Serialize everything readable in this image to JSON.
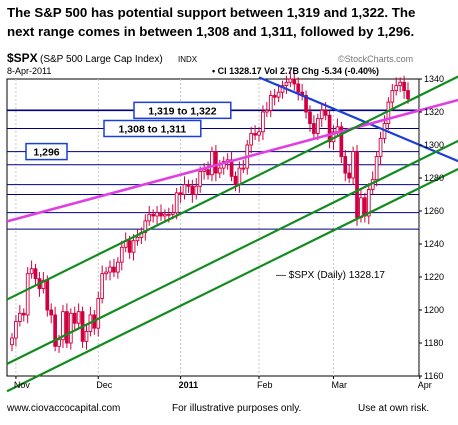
{
  "headline": {
    "line1": "The S&P 500 has potential support between 1,319 and 1,322.  The",
    "line2": "next range  comes in between 1,308 and 1,311, followed by 1,296."
  },
  "header": {
    "symbol": "$SPX",
    "name": "(S&P 500 Large Cap Index)",
    "exchange": "INDX",
    "date": "8-Apr-2011",
    "stats": "• Cl 1328.17  Vol 2.7B  Chg -5.34 (-0.40%)",
    "brand": "©StockCharts.com",
    "legend": "— $SPX (Daily) 1328.17"
  },
  "footer": {
    "site": "www.ciovaccocapital.com",
    "note": "For illustrative purposes only.",
    "risk": "Use at own risk."
  },
  "colors": {
    "candle": "#d00040",
    "grid": "#000080",
    "trend_blue": "#1a3fd6",
    "trend_green": "#128c1e",
    "trend_magenta": "#e040e0",
    "label_box": "#1a3fd6"
  },
  "chart_data": {
    "type": "candlestick",
    "title": "$SPX (S&P 500 Large Cap Index)",
    "ylim": [
      1160,
      1340
    ],
    "yticks": [
      1160,
      1180,
      1200,
      1220,
      1240,
      1260,
      1280,
      1300,
      1320,
      1340
    ],
    "x_labels": [
      "Nov",
      "Dec",
      "2011",
      "Feb",
      "Mar",
      "Apr"
    ],
    "support_levels": [
      {
        "label": "1,319 to 1,322",
        "value": 1321
      },
      {
        "label": "1,308 to 1,311",
        "value": 1310
      },
      {
        "label": "1,296",
        "value": 1296
      }
    ],
    "horizontal_lines": [
      1321,
      1310,
      1296,
      1288,
      1276,
      1270,
      1259,
      1249
    ],
    "close": [
      1183,
      1193,
      1198,
      1197,
      1222,
      1225,
      1219,
      1213,
      1218,
      1200,
      1197,
      1178,
      1182,
      1199,
      1180,
      1198,
      1192,
      1199,
      1181,
      1187,
      1197,
      1189,
      1207,
      1222,
      1223,
      1226,
      1223,
      1229,
      1238,
      1242,
      1235,
      1242,
      1244,
      1247,
      1254,
      1258,
      1257,
      1259,
      1257,
      1258,
      1258,
      1259,
      1271,
      1270,
      1276,
      1275,
      1270,
      1275,
      1284,
      1285,
      1282,
      1296,
      1283,
      1286,
      1290,
      1291,
      1281,
      1276,
      1286,
      1286,
      1300,
      1307,
      1306,
      1308,
      1320,
      1321,
      1330,
      1329,
      1332,
      1336,
      1338,
      1340,
      1337,
      1332,
      1330,
      1320,
      1313,
      1307,
      1316,
      1321,
      1318,
      1302,
      1308,
      1311,
      1293,
      1283,
      1280,
      1296,
      1256,
      1268,
      1257,
      1273,
      1279,
      1293,
      1304,
      1313,
      1326,
      1333,
      1336,
      1338,
      1333,
      1328
    ],
    "annotations": [
      "1,319 to 1,322",
      "1,308 to 1,311",
      "1,296"
    ],
    "trendlines": [
      {
        "color": "blue",
        "from": [
          "Feb",
          1341
        ],
        "to": [
          "Apr",
          1300
        ]
      },
      {
        "color": "magenta",
        "from": [
          "2011",
          1282
        ],
        "to": [
          "Apr",
          1321
        ]
      },
      {
        "color": "green",
        "from": [
          "Nov",
          1209
        ],
        "to": [
          "Apr",
          1330
        ]
      },
      {
        "color": "green",
        "from": [
          "Nov",
          1170
        ],
        "to": [
          "Apr",
          1291
        ]
      },
      {
        "color": "green",
        "from": [
          "Dec",
          1178
        ],
        "to": [
          "Apr",
          1274
        ]
      }
    ]
  }
}
